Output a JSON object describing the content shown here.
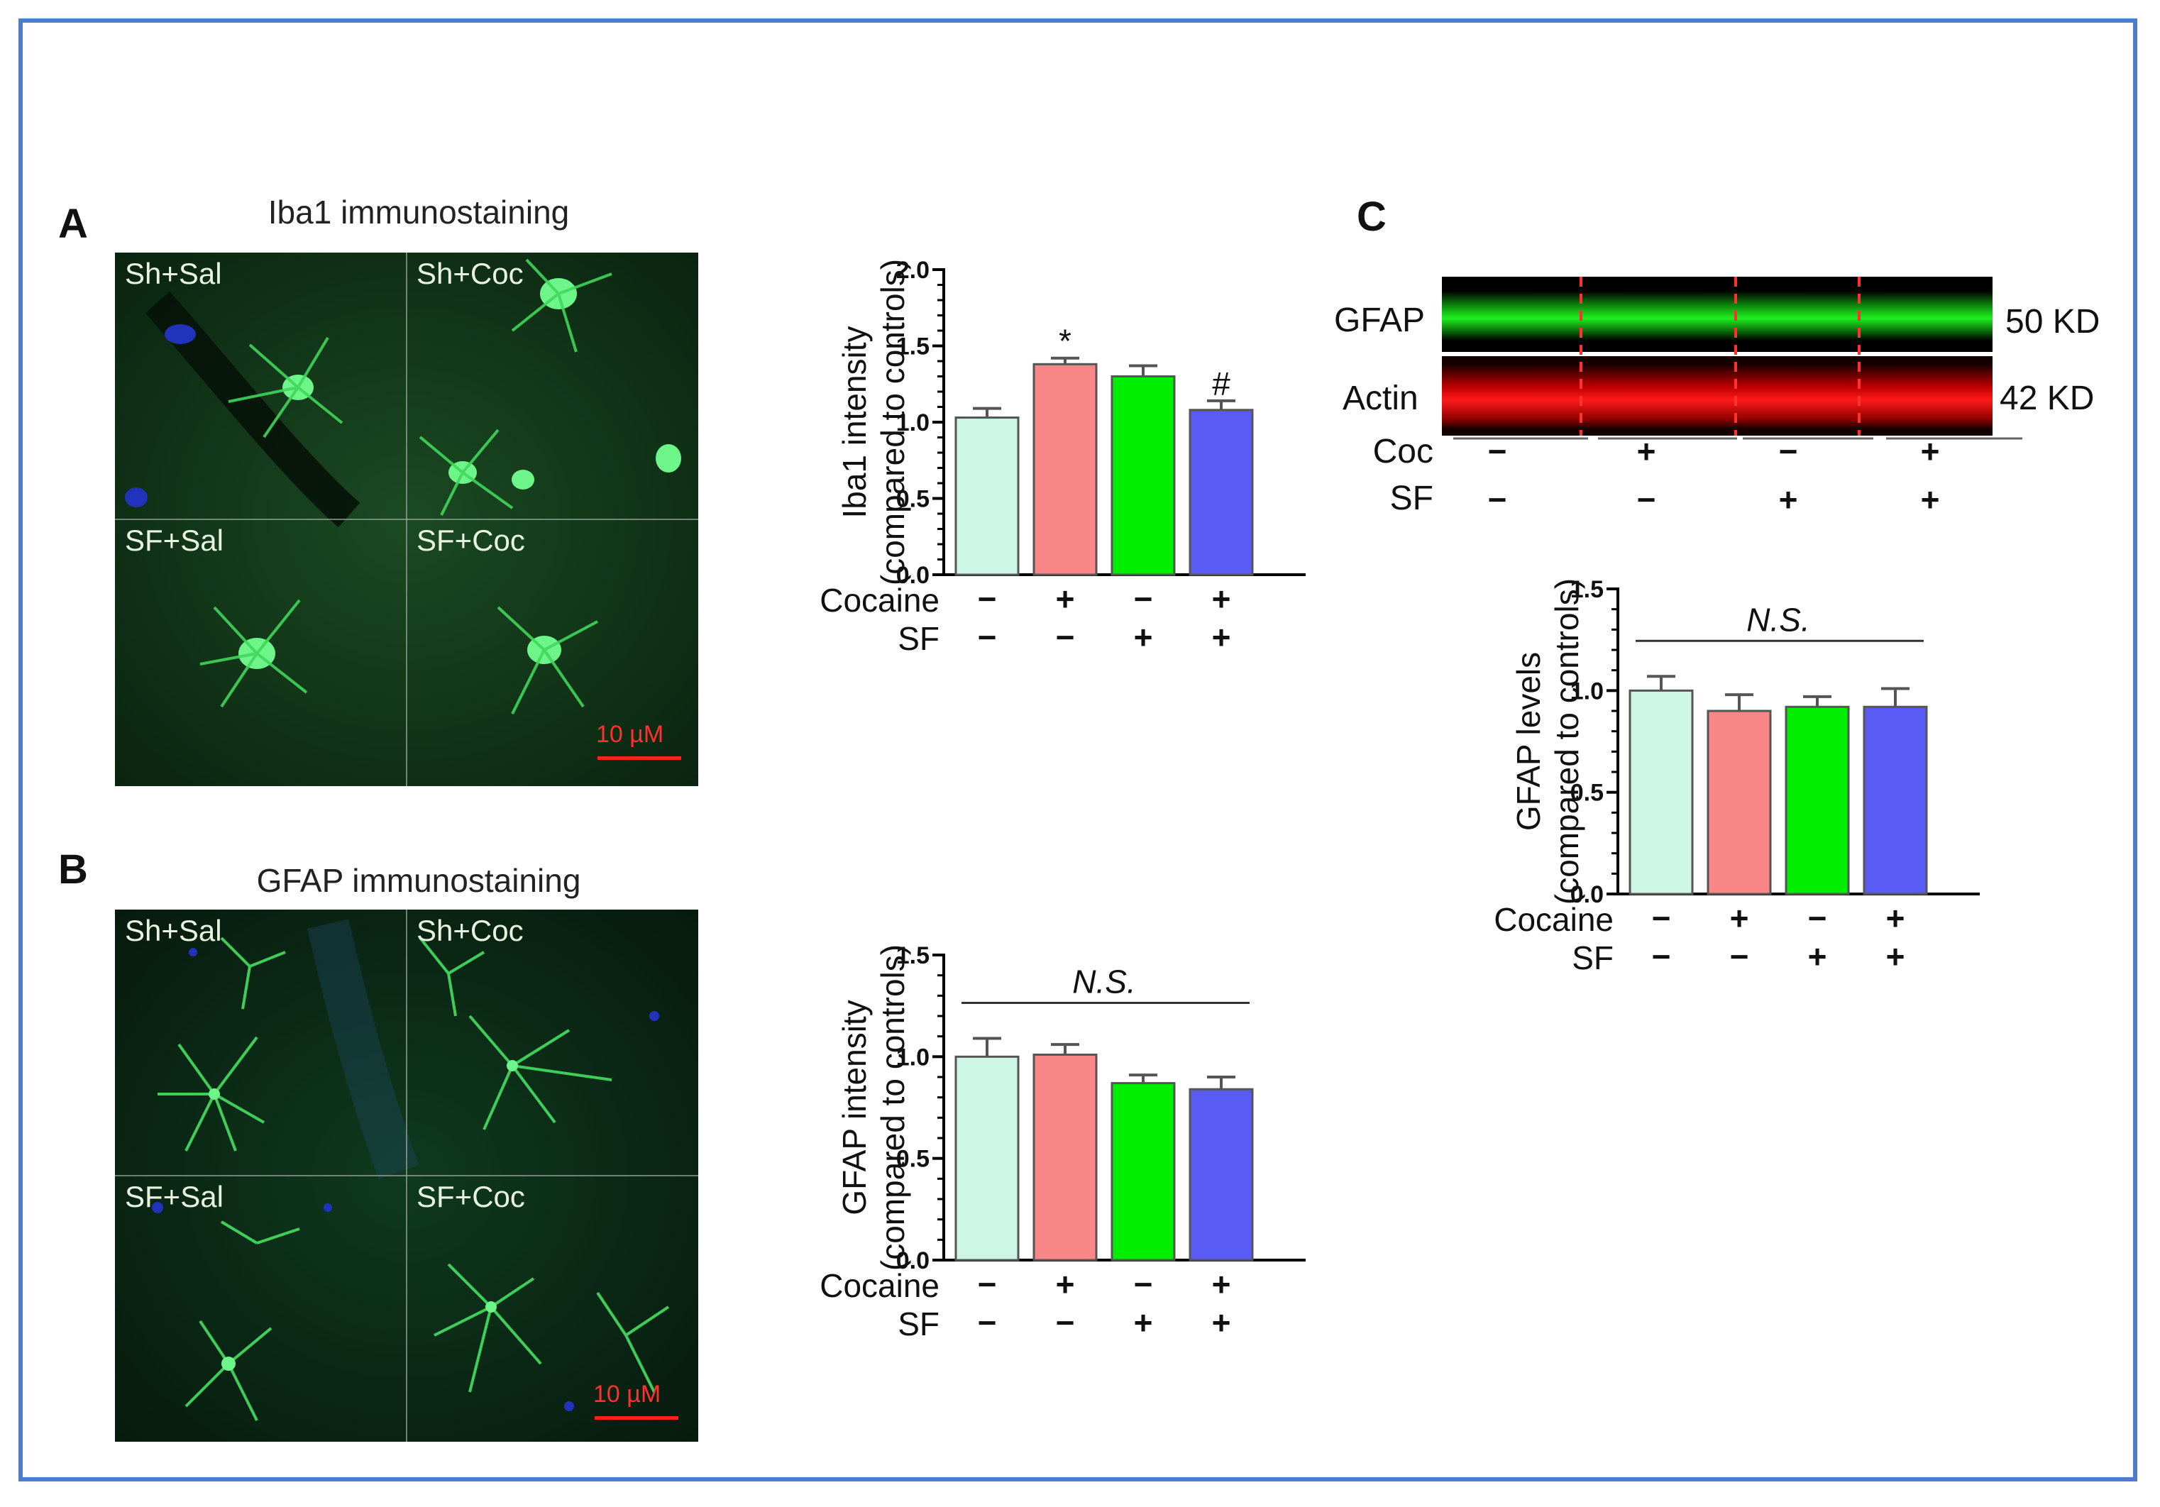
{
  "panelA": {
    "letter": "A",
    "title": "Iba1 immunostaining",
    "quadrants": [
      "Sh+Sal",
      "Sh+Coc",
      "SF+Sal",
      "SF+Coc"
    ],
    "scalebar": "10 µM"
  },
  "panelB": {
    "letter": "B",
    "title": "GFAP immunostaining",
    "quadrants": [
      "Sh+Sal",
      "Sh+Coc",
      "SF+Sal",
      "SF+Coc"
    ],
    "scalebar": "10 µM"
  },
  "panelC": {
    "letter": "C",
    "blot": {
      "rows": [
        "GFAP",
        "Actin"
      ],
      "kd": [
        "50 KD",
        "42 KD"
      ],
      "conditions": [
        {
          "label": "Coc",
          "values": [
            "−",
            "+",
            "−",
            "+"
          ]
        },
        {
          "label": "SF",
          "values": [
            "−",
            "−",
            "+",
            "+"
          ]
        }
      ]
    }
  },
  "colors": {
    "sh_sal": "#cdf6e6",
    "sh_coc": "#f98787",
    "sf_sal": "#00ee00",
    "sf_coc": "#5a5af5",
    "frame": "#4f7dc9",
    "gfap_band": "#19e019",
    "actin_band": "#ff1a1a"
  },
  "chart_data": [
    {
      "id": "iba1",
      "type": "bar",
      "ylabel": [
        "Iba1 intensity",
        "(compared to controls)"
      ],
      "ylim": [
        0,
        2.0
      ],
      "yticks": [
        "0.0",
        "0.5",
        "1.0",
        "1.5",
        "2.0"
      ],
      "values": [
        1.03,
        1.38,
        1.3,
        1.08
      ],
      "errors": [
        0.06,
        0.04,
        0.07,
        0.06
      ],
      "annotations": [
        "",
        "*",
        "",
        "#"
      ],
      "ns_label": "",
      "conditions": [
        {
          "label": "Cocaine",
          "values": [
            "−",
            "+",
            "−",
            "+"
          ]
        },
        {
          "label": "SF",
          "values": [
            "−",
            "−",
            "+",
            "+"
          ]
        }
      ]
    },
    {
      "id": "gfap_intensity",
      "type": "bar",
      "ylabel": [
        "GFAP intensity",
        "(compared to controls)"
      ],
      "ylim": [
        0,
        1.5
      ],
      "yticks": [
        "0.0",
        "0.5",
        "1.0",
        "1.5"
      ],
      "values": [
        1.0,
        1.01,
        0.87,
        0.84
      ],
      "errors": [
        0.09,
        0.05,
        0.04,
        0.06
      ],
      "annotations": [
        "",
        "",
        "",
        ""
      ],
      "ns_label": "N.S.",
      "conditions": [
        {
          "label": "Cocaine",
          "values": [
            "−",
            "+",
            "−",
            "+"
          ]
        },
        {
          "label": "SF",
          "values": [
            "−",
            "−",
            "+",
            "+"
          ]
        }
      ]
    },
    {
      "id": "gfap_levels",
      "type": "bar",
      "ylabel": [
        "GFAP levels",
        "(compared to controls)"
      ],
      "ylim": [
        0,
        1.5
      ],
      "yticks": [
        "0.0",
        "0.5",
        "1.0",
        "1.5"
      ],
      "values": [
        1.0,
        0.9,
        0.92,
        0.92
      ],
      "errors": [
        0.07,
        0.08,
        0.05,
        0.09
      ],
      "annotations": [
        "",
        "",
        "",
        ""
      ],
      "ns_label": "N.S.",
      "conditions": [
        {
          "label": "Cocaine",
          "values": [
            "−",
            "+",
            "−",
            "+"
          ]
        },
        {
          "label": "SF",
          "values": [
            "−",
            "−",
            "+",
            "+"
          ]
        }
      ]
    }
  ]
}
